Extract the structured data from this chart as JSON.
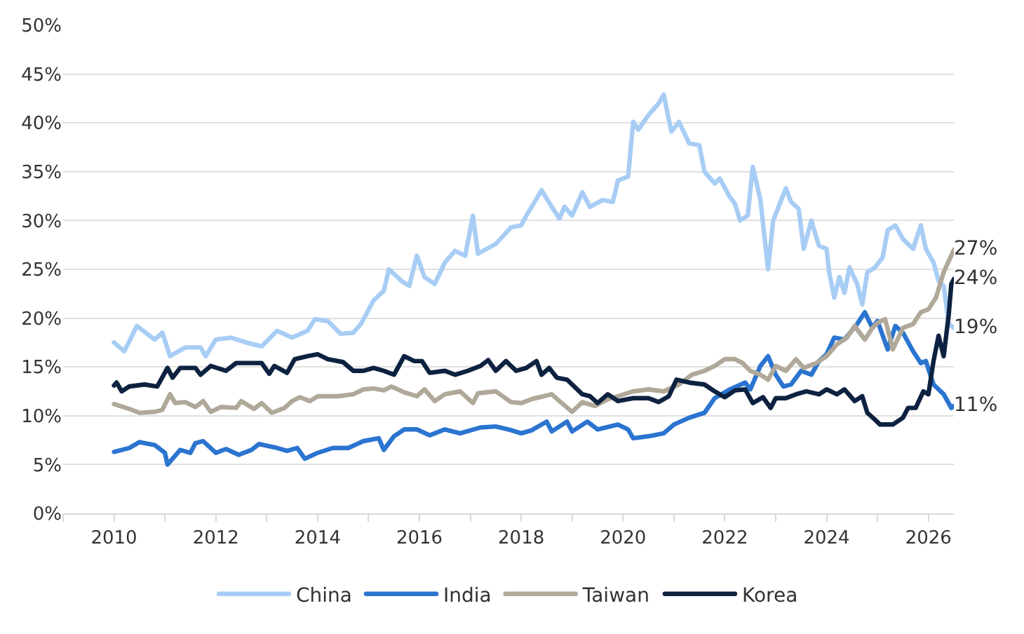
{
  "chart_data": {
    "type": "line",
    "xlim": [
      2009,
      2026.5
    ],
    "xticks": [
      {
        "value": 2009,
        "label": null
      },
      2010,
      {
        "value": 2011,
        "label": null
      },
      2012,
      {
        "value": 2013,
        "label": null
      },
      2014,
      {
        "value": 2015,
        "label": null
      },
      2016,
      {
        "value": 2017,
        "label": null
      },
      2018,
      {
        "value": 2019,
        "label": null
      },
      2020,
      {
        "value": 2021,
        "label": null
      },
      2022,
      {
        "value": 2023,
        "label": null
      },
      2024,
      {
        "value": 2025,
        "label": null
      },
      2026
    ],
    "ylim": [
      0,
      50
    ],
    "yticks": [
      {
        "value": 0,
        "label": "0%"
      },
      {
        "value": 5,
        "label": "5%"
      },
      {
        "value": 10,
        "label": "10%"
      },
      {
        "value": 15,
        "label": "15%"
      },
      {
        "value": 20,
        "label": "20%"
      },
      {
        "value": 25,
        "label": "25%"
      },
      {
        "value": 30,
        "label": "30%"
      },
      {
        "value": 35,
        "label": "35%"
      },
      {
        "value": 40,
        "label": "40%"
      },
      {
        "value": 45,
        "label": "45%"
      },
      {
        "value": 50,
        "label": "50%"
      }
    ],
    "grid": "y",
    "legend": "bottom",
    "marker": "none",
    "line_style": "solid",
    "series": [
      {
        "name": "China",
        "color": "#a8cdf5",
        "x": [
          2010,
          2010.2,
          2010.45,
          2010.8,
          2010.95,
          2011.1,
          2011.4,
          2011.7,
          2011.8,
          2012,
          2012.3,
          2012.6,
          2012.9,
          2013.2,
          2013.5,
          2013.8,
          2013.95,
          2014.2,
          2014.45,
          2014.7,
          2014.85,
          2015.1,
          2015.3,
          2015.4,
          2015.65,
          2015.8,
          2015.95,
          2016.1,
          2016.3,
          2016.5,
          2016.7,
          2016.9,
          2017.05,
          2017.15,
          2017.5,
          2017.8,
          2018.0,
          2018.1,
          2018.4,
          2018.6,
          2018.75,
          2018.85,
          2019.0,
          2019.2,
          2019.35,
          2019.6,
          2019.8,
          2019.9,
          2020.1,
          2020.2,
          2020.3,
          2020.5,
          2020.7,
          2020.8,
          2020.95,
          2021.1,
          2021.3,
          2021.5,
          2021.6,
          2021.8,
          2021.9,
          2022.1,
          2022.2,
          2022.3,
          2022.45,
          2022.55,
          2022.7,
          2022.85,
          2022.95,
          2023.2,
          2023.3,
          2023.45,
          2023.55,
          2023.7,
          2023.85,
          2024.0,
          2024.05,
          2024.15,
          2024.25,
          2024.35,
          2024.45,
          2024.6,
          2024.7,
          2024.8,
          2024.95,
          2025.1,
          2025.2,
          2025.35,
          2025.5,
          2025.7,
          2025.85,
          2025.95,
          2026.1,
          2026.2,
          2026.3,
          2026.4,
          2026.5
        ],
        "values": [
          17.5,
          16.6,
          19.2,
          17.8,
          18.5,
          16.1,
          17.0,
          17.0,
          16.1,
          17.8,
          18.0,
          17.5,
          17.1,
          18.7,
          18.0,
          18.7,
          19.9,
          19.7,
          18.4,
          18.5,
          19.4,
          21.8,
          22.8,
          25.0,
          23.8,
          23.3,
          26.4,
          24.2,
          23.5,
          25.7,
          26.9,
          26.4,
          30.5,
          26.6,
          27.6,
          29.3,
          29.5,
          30.5,
          33.1,
          31.4,
          30.2,
          31.4,
          30.5,
          32.9,
          31.4,
          32.1,
          31.9,
          34.1,
          34.5,
          40.1,
          39.3,
          40.8,
          42.0,
          42.9,
          39.1,
          40.1,
          37.9,
          37.7,
          35.0,
          33.8,
          34.3,
          32.4,
          31.7,
          30.0,
          30.5,
          35.5,
          32.1,
          25.0,
          30.0,
          33.3,
          31.9,
          31.2,
          27.1,
          30.0,
          27.4,
          27.1,
          24.7,
          22.1,
          24.2,
          22.6,
          25.2,
          23.5,
          21.4,
          24.7,
          25.2,
          26.2,
          29.0,
          29.5,
          28.1,
          27.1,
          29.5,
          27.1,
          25.7,
          23.8,
          23.3,
          19.4,
          19
        ],
        "value_labels": [
          null,
          null,
          null,
          null,
          null,
          null,
          null,
          null,
          null,
          null,
          null,
          null,
          null,
          null,
          null,
          null,
          null,
          null,
          null,
          null,
          null,
          null,
          null,
          null,
          null,
          null,
          null,
          null,
          null,
          null,
          null,
          null,
          null,
          null,
          null,
          null,
          null,
          null,
          null,
          null,
          null,
          null,
          null,
          null,
          null,
          null,
          null,
          null,
          null,
          null,
          null,
          null,
          null,
          null,
          null,
          null,
          null,
          null,
          null,
          null,
          null,
          null,
          null,
          null,
          null,
          null,
          null,
          null,
          null,
          null,
          null,
          null,
          null,
          null,
          null,
          null,
          null,
          null,
          null,
          null,
          null,
          null,
          null,
          null,
          null,
          null,
          null,
          null,
          null,
          null,
          null,
          null,
          null,
          null,
          null,
          null,
          "19%"
        ]
      },
      {
        "name": "India",
        "color": "#2b74d0",
        "x": [
          2010,
          2010.3,
          2010.5,
          2010.8,
          2011.0,
          2011.05,
          2011.3,
          2011.5,
          2011.6,
          2011.75,
          2012.0,
          2012.2,
          2012.45,
          2012.7,
          2012.85,
          2013.2,
          2013.4,
          2013.6,
          2013.75,
          2014.0,
          2014.3,
          2014.6,
          2014.9,
          2015.2,
          2015.3,
          2015.5,
          2015.7,
          2015.95,
          2016.2,
          2016.5,
          2016.8,
          2017.2,
          2017.5,
          2017.75,
          2018.0,
          2018.2,
          2018.5,
          2018.6,
          2018.9,
          2019.0,
          2019.3,
          2019.5,
          2019.9,
          2020.1,
          2020.2,
          2020.5,
          2020.8,
          2021.0,
          2021.3,
          2021.6,
          2021.8,
          2022.1,
          2022.4,
          2022.5,
          2022.7,
          2022.85,
          2023.0,
          2023.15,
          2023.3,
          2023.5,
          2023.7,
          2023.85,
          2024.0,
          2024.15,
          2024.35,
          2024.6,
          2024.75,
          2024.9,
          2025.0,
          2025.2,
          2025.35,
          2025.5,
          2025.7,
          2025.85,
          2025.95,
          2026.1,
          2026.3,
          2026.45,
          2026.5
        ],
        "values": [
          6.3,
          6.7,
          7.3,
          7.0,
          6.2,
          5.0,
          6.5,
          6.2,
          7.2,
          7.4,
          6.2,
          6.6,
          6.0,
          6.5,
          7.1,
          6.7,
          6.4,
          6.7,
          5.6,
          6.2,
          6.7,
          6.7,
          7.4,
          7.7,
          6.5,
          7.9,
          8.6,
          8.6,
          8.0,
          8.6,
          8.2,
          8.8,
          8.9,
          8.6,
          8.2,
          8.5,
          9.4,
          8.4,
          9.4,
          8.4,
          9.4,
          8.6,
          9.1,
          8.6,
          7.7,
          7.9,
          8.2,
          9.1,
          9.8,
          10.3,
          11.8,
          12.7,
          13.4,
          12.7,
          15.1,
          16.1,
          14.2,
          13.0,
          13.2,
          14.6,
          14.2,
          15.6,
          16.3,
          18.0,
          17.8,
          19.4,
          20.6,
          19.0,
          19.7,
          16.8,
          19.2,
          18.5,
          16.6,
          15.4,
          15.6,
          13.2,
          12.2,
          10.8,
          11
        ],
        "value_labels": [
          null,
          null,
          null,
          null,
          null,
          null,
          null,
          null,
          null,
          null,
          null,
          null,
          null,
          null,
          null,
          null,
          null,
          null,
          null,
          null,
          null,
          null,
          null,
          null,
          null,
          null,
          null,
          null,
          null,
          null,
          null,
          null,
          null,
          null,
          null,
          null,
          null,
          null,
          null,
          null,
          null,
          null,
          null,
          null,
          null,
          null,
          null,
          null,
          null,
          null,
          null,
          null,
          null,
          null,
          null,
          null,
          null,
          null,
          null,
          null,
          null,
          null,
          null,
          null,
          null,
          null,
          null,
          null,
          null,
          null,
          null,
          null,
          null,
          null,
          null,
          null,
          null,
          null,
          "11%"
        ]
      },
      {
        "name": "Taiwan",
        "color": "#b0a898",
        "x": [
          2010,
          2010.3,
          2010.5,
          2010.8,
          2010.95,
          2011.1,
          2011.2,
          2011.4,
          2011.6,
          2011.75,
          2011.9,
          2012.1,
          2012.4,
          2012.5,
          2012.75,
          2012.9,
          2013.1,
          2013.35,
          2013.5,
          2013.65,
          2013.85,
          2014.0,
          2014.4,
          2014.7,
          2014.9,
          2015.1,
          2015.3,
          2015.45,
          2015.7,
          2015.95,
          2016.1,
          2016.3,
          2016.5,
          2016.8,
          2017.05,
          2017.15,
          2017.5,
          2017.8,
          2018.0,
          2018.2,
          2018.6,
          2018.75,
          2019.0,
          2019.2,
          2019.45,
          2019.7,
          2019.9,
          2020.2,
          2020.5,
          2020.8,
          2021.1,
          2021.35,
          2021.6,
          2021.8,
          2022.0,
          2022.2,
          2022.35,
          2022.5,
          2022.7,
          2022.85,
          2023.0,
          2023.2,
          2023.4,
          2023.55,
          2023.8,
          2024.0,
          2024.2,
          2024.4,
          2024.55,
          2024.75,
          2024.9,
          2025.0,
          2025.15,
          2025.3,
          2025.5,
          2025.7,
          2025.85,
          2026.0,
          2026.15,
          2026.3,
          2026.5
        ],
        "values": [
          11.2,
          10.7,
          10.3,
          10.4,
          10.6,
          12.2,
          11.3,
          11.4,
          10.9,
          11.5,
          10.4,
          10.9,
          10.8,
          11.5,
          10.7,
          11.3,
          10.3,
          10.8,
          11.5,
          11.9,
          11.5,
          12.0,
          12.0,
          12.2,
          12.7,
          12.8,
          12.6,
          13.0,
          12.4,
          12.0,
          12.7,
          11.5,
          12.2,
          12.5,
          11.3,
          12.3,
          12.5,
          11.4,
          11.3,
          11.7,
          12.2,
          11.5,
          10.4,
          11.4,
          11.0,
          11.7,
          12.0,
          12.5,
          12.7,
          12.5,
          13.2,
          14.2,
          14.6,
          15.1,
          15.8,
          15.8,
          15.4,
          14.6,
          14.2,
          13.7,
          15.1,
          14.6,
          15.8,
          14.9,
          15.4,
          16.1,
          17.3,
          18.0,
          19.2,
          17.8,
          19.0,
          19.5,
          19.9,
          16.8,
          19.0,
          19.4,
          20.6,
          20.9,
          22.1,
          24.7,
          27
        ],
        "value_labels": [
          null,
          null,
          null,
          null,
          null,
          null,
          null,
          null,
          null,
          null,
          null,
          null,
          null,
          null,
          null,
          null,
          null,
          null,
          null,
          null,
          null,
          null,
          null,
          null,
          null,
          null,
          null,
          null,
          null,
          null,
          null,
          null,
          null,
          null,
          null,
          null,
          null,
          null,
          null,
          null,
          null,
          null,
          null,
          null,
          null,
          null,
          null,
          null,
          null,
          null,
          null,
          null,
          null,
          null,
          null,
          null,
          null,
          null,
          null,
          null,
          null,
          null,
          null,
          null,
          null,
          null,
          null,
          null,
          null,
          null,
          null,
          null,
          null,
          null,
          null,
          null,
          null,
          null,
          null,
          null,
          "27%"
        ]
      },
      {
        "name": "Korea",
        "color": "#0d2240",
        "x": [
          2010,
          2010.05,
          2010.15,
          2010.3,
          2010.6,
          2010.85,
          2011.05,
          2011.15,
          2011.3,
          2011.6,
          2011.7,
          2011.9,
          2012.2,
          2012.4,
          2012.7,
          2012.9,
          2013.05,
          2013.15,
          2013.4,
          2013.55,
          2013.8,
          2014.0,
          2014.2,
          2014.5,
          2014.7,
          2014.9,
          2015.1,
          2015.3,
          2015.5,
          2015.7,
          2015.9,
          2016.05,
          2016.2,
          2016.5,
          2016.7,
          2016.95,
          2017.2,
          2017.35,
          2017.5,
          2017.7,
          2017.9,
          2018.1,
          2018.3,
          2018.4,
          2018.55,
          2018.7,
          2018.9,
          2019.2,
          2019.35,
          2019.5,
          2019.7,
          2019.9,
          2020.2,
          2020.5,
          2020.7,
          2020.9,
          2021.05,
          2021.3,
          2021.6,
          2021.8,
          2022.0,
          2022.2,
          2022.4,
          2022.55,
          2022.75,
          2022.9,
          2023.0,
          2023.2,
          2023.4,
          2023.6,
          2023.85,
          2024.0,
          2024.2,
          2024.35,
          2024.55,
          2024.7,
          2024.8,
          2024.95,
          2025.05,
          2025.3,
          2025.5,
          2025.6,
          2025.75,
          2025.9,
          2026.0,
          2026.1,
          2026.2,
          2026.3,
          2026.4,
          2026.45,
          2026.5
        ],
        "values": [
          13.1,
          13.4,
          12.5,
          13.0,
          13.2,
          13.0,
          14.9,
          13.9,
          14.9,
          14.9,
          14.2,
          15.1,
          14.6,
          15.4,
          15.4,
          15.4,
          14.3,
          15.1,
          14.4,
          15.8,
          16.1,
          16.3,
          15.8,
          15.5,
          14.6,
          14.6,
          14.9,
          14.6,
          14.2,
          16.1,
          15.6,
          15.6,
          14.4,
          14.6,
          14.2,
          14.6,
          15.1,
          15.7,
          14.6,
          15.6,
          14.6,
          14.9,
          15.6,
          14.2,
          14.9,
          13.9,
          13.7,
          12.2,
          12.0,
          11.3,
          12.2,
          11.5,
          11.8,
          11.8,
          11.4,
          12.0,
          13.7,
          13.4,
          13.2,
          12.5,
          11.9,
          12.6,
          12.7,
          11.3,
          11.9,
          10.8,
          11.8,
          11.8,
          12.2,
          12.5,
          12.2,
          12.7,
          12.2,
          12.7,
          11.5,
          12.0,
          10.3,
          9.6,
          9.1,
          9.1,
          9.8,
          10.8,
          10.8,
          12.5,
          12.2,
          15.6,
          18.2,
          16.1,
          20.4,
          23.5,
          24
        ],
        "value_labels": [
          null,
          null,
          null,
          null,
          null,
          null,
          null,
          null,
          null,
          null,
          null,
          null,
          null,
          null,
          null,
          null,
          null,
          null,
          null,
          null,
          null,
          null,
          null,
          null,
          null,
          null,
          null,
          null,
          null,
          null,
          null,
          null,
          null,
          null,
          null,
          null,
          null,
          null,
          null,
          null,
          null,
          null,
          null,
          null,
          null,
          null,
          null,
          null,
          null,
          null,
          null,
          null,
          null,
          null,
          null,
          null,
          null,
          null,
          null,
          null,
          null,
          null,
          null,
          null,
          null,
          null,
          null,
          null,
          null,
          null,
          null,
          null,
          null,
          null,
          null,
          null,
          null,
          null,
          null,
          null,
          null,
          null,
          null,
          null,
          null,
          null,
          null,
          null,
          null,
          null,
          "24%"
        ]
      }
    ]
  }
}
